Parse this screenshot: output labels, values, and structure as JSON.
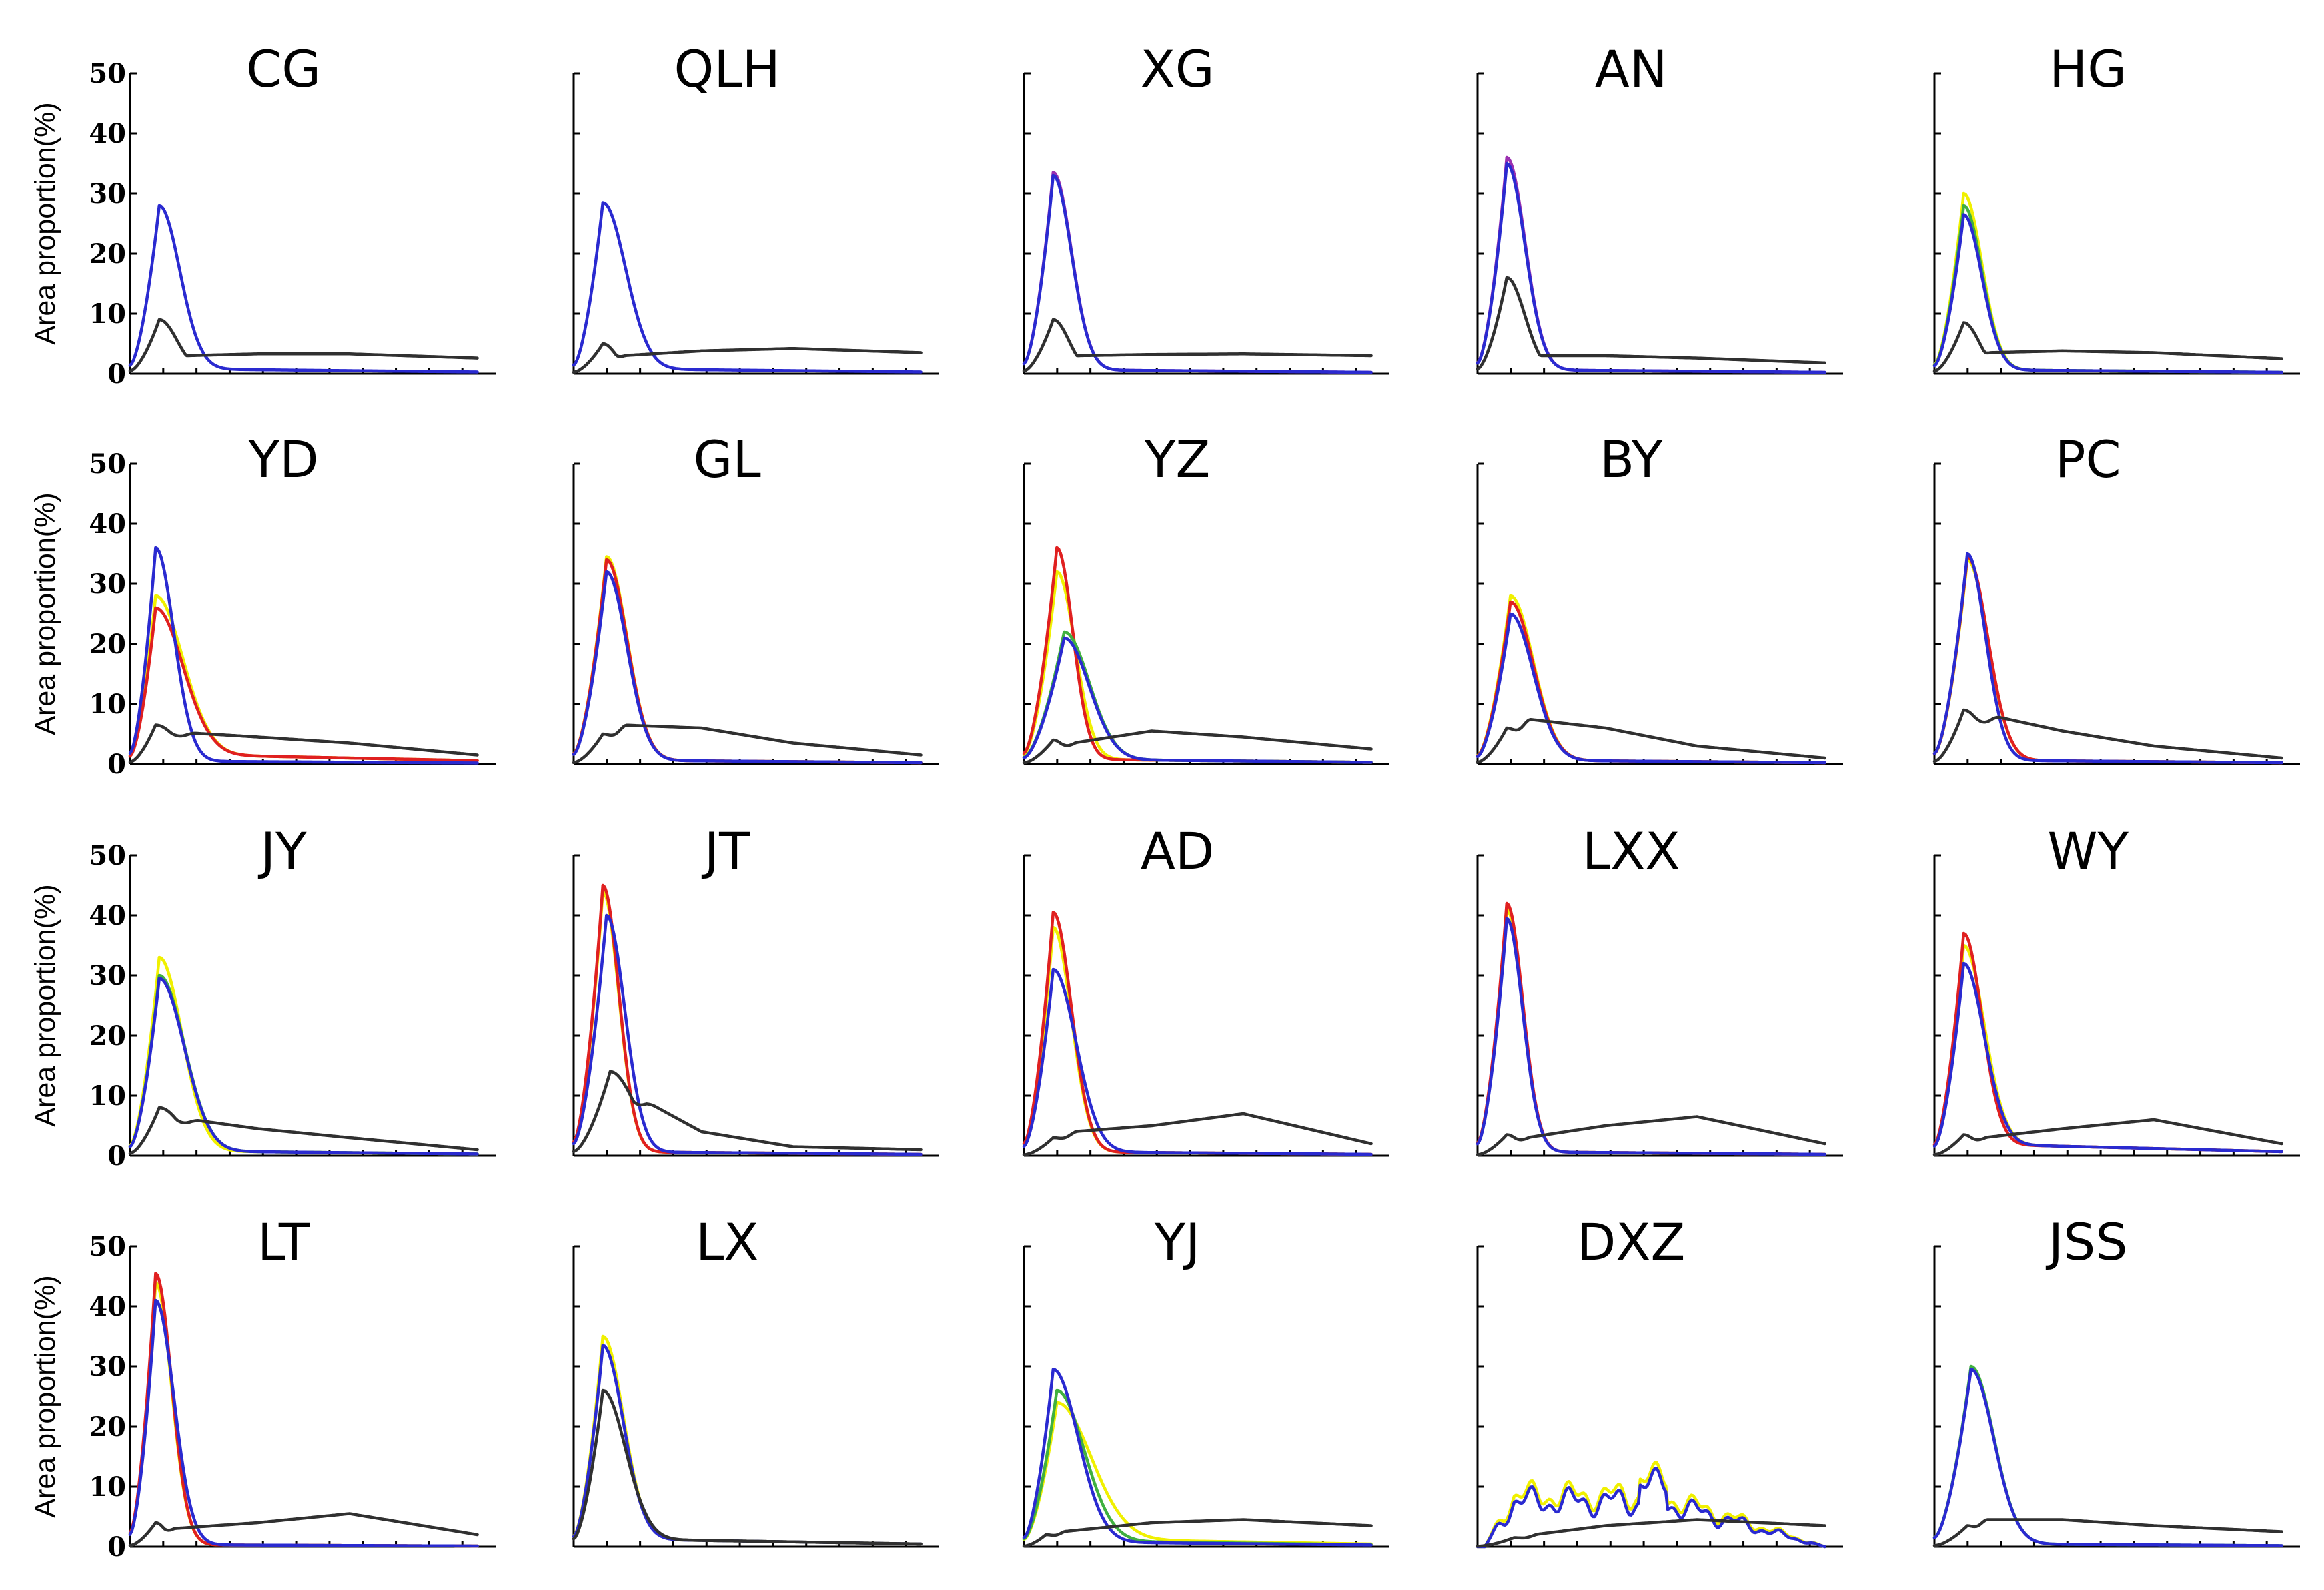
{
  "chart_data": {
    "type": "line",
    "layout": "4x5 small multiples",
    "ylabel": "Area proportion(%)",
    "ylim": [
      0,
      50
    ],
    "yticks": [
      0,
      10,
      20,
      30,
      40,
      50
    ],
    "xlim": [
      0,
      100
    ],
    "legend": "none",
    "grid": false,
    "series_colors": {
      "yellow": "#f0f000",
      "green": "#40b040",
      "red": "#e02020",
      "purple": "#9b30b0",
      "blue": "#2a2ad0",
      "black": "#303030"
    },
    "panels": [
      {
        "title": "CG",
        "series": [
          {
            "color": "blue",
            "peak": 28,
            "peak_x": 8,
            "width": 9,
            "tail": 0.5
          },
          {
            "color": "black",
            "peak": 9,
            "peak_x": 8,
            "width": 8,
            "plateau": [
              3,
              3.3,
              3.3,
              2.6
            ]
          }
        ]
      },
      {
        "title": "QLH",
        "series": [
          {
            "color": "blue",
            "peak": 28.5,
            "peak_x": 8,
            "width": 10,
            "tail": 0.5
          },
          {
            "color": "black",
            "peak": 5,
            "peak_x": 8,
            "width": 6,
            "plateau": [
              3,
              3.8,
              4.2,
              3.5
            ]
          }
        ]
      },
      {
        "title": "XG",
        "series": [
          {
            "color": "purple",
            "peak": 33.5,
            "peak_x": 8,
            "width": 8,
            "tail": 0.4
          },
          {
            "color": "blue",
            "peak": 33,
            "peak_x": 8,
            "width": 8,
            "tail": 0.4
          },
          {
            "color": "black",
            "peak": 9,
            "peak_x": 8,
            "width": 7,
            "plateau": [
              3,
              3.2,
              3.3,
              3
            ]
          }
        ]
      },
      {
        "title": "AN",
        "series": [
          {
            "color": "purple",
            "peak": 36,
            "peak_x": 8,
            "width": 8,
            "tail": 0.4
          },
          {
            "color": "blue",
            "peak": 35,
            "peak_x": 8,
            "width": 8,
            "tail": 0.4
          },
          {
            "color": "black",
            "peak": 16,
            "peak_x": 8,
            "width": 8,
            "plateau": [
              3,
              3,
              2.6,
              1.8
            ]
          }
        ]
      },
      {
        "title": "HG",
        "series": [
          {
            "color": "yellow",
            "peak": 30,
            "peak_x": 8,
            "width": 8,
            "tail": 0.4
          },
          {
            "color": "green",
            "peak": 28,
            "peak_x": 8,
            "width": 8,
            "tail": 0.4
          },
          {
            "color": "blue",
            "peak": 26.5,
            "peak_x": 8,
            "width": 8,
            "tail": 0.4
          },
          {
            "color": "black",
            "peak": 8.5,
            "peak_x": 8,
            "width": 7,
            "plateau": [
              3.5,
              3.8,
              3.5,
              2.5
            ]
          }
        ]
      },
      {
        "title": "YD",
        "series": [
          {
            "color": "yellow",
            "peak": 28,
            "peak_x": 7,
            "width": 12,
            "tail": 1
          },
          {
            "color": "red",
            "peak": 26,
            "peak_x": 7,
            "width": 12,
            "tail": 1
          },
          {
            "color": "blue",
            "peak": 36,
            "peak_x": 7,
            "width": 8,
            "tail": 0.3
          },
          {
            "color": "black",
            "peak": 6.5,
            "peak_x": 7,
            "width": 10,
            "plateau": [
              5.2,
              4.5,
              3.5,
              1.5
            ]
          }
        ]
      },
      {
        "title": "GL",
        "series": [
          {
            "color": "yellow",
            "peak": 34.5,
            "peak_x": 9,
            "width": 9,
            "tail": 0.4
          },
          {
            "color": "red",
            "peak": 34,
            "peak_x": 9,
            "width": 9,
            "tail": 0.4
          },
          {
            "color": "blue",
            "peak": 32,
            "peak_x": 9,
            "width": 9,
            "tail": 0.4
          },
          {
            "color": "black",
            "peak": 5,
            "peak_x": 8,
            "width": 6,
            "plateau": [
              6.5,
              6,
              3.5,
              1.5
            ]
          }
        ]
      },
      {
        "title": "YZ",
        "series": [
          {
            "color": "yellow",
            "peak": 32,
            "peak_x": 9,
            "width": 8,
            "tail": 0.5
          },
          {
            "color": "red",
            "peak": 36,
            "peak_x": 9,
            "width": 7,
            "tail": 0.5
          },
          {
            "color": "green",
            "peak": 22,
            "peak_x": 11,
            "width": 11,
            "tail": 0.5
          },
          {
            "color": "blue",
            "peak": 21,
            "peak_x": 11,
            "width": 11,
            "tail": 0.5
          },
          {
            "color": "black",
            "peak": 4,
            "peak_x": 8,
            "width": 6,
            "plateau": [
              3.5,
              5.5,
              4.5,
              2.5
            ]
          }
        ]
      },
      {
        "title": "BY",
        "series": [
          {
            "color": "yellow",
            "peak": 28,
            "peak_x": 9,
            "width": 10,
            "tail": 0.4
          },
          {
            "color": "red",
            "peak": 27,
            "peak_x": 9,
            "width": 10,
            "tail": 0.4
          },
          {
            "color": "blue",
            "peak": 25,
            "peak_x": 9,
            "width": 10,
            "tail": 0.4
          },
          {
            "color": "black",
            "peak": 6,
            "peak_x": 8,
            "width": 6,
            "plateau": [
              7.5,
              6,
              3,
              1
            ]
          }
        ]
      },
      {
        "title": "PC",
        "series": [
          {
            "color": "yellow",
            "peak": 34,
            "peak_x": 9,
            "width": 9,
            "tail": 0.4
          },
          {
            "color": "red",
            "peak": 34.5,
            "peak_x": 9,
            "width": 9,
            "tail": 0.4
          },
          {
            "color": "blue",
            "peak": 35,
            "peak_x": 9,
            "width": 8,
            "tail": 0.4
          },
          {
            "color": "black",
            "peak": 9,
            "peak_x": 8,
            "width": 9,
            "plateau": [
              8,
              5.5,
              3,
              1
            ]
          }
        ]
      },
      {
        "title": "JY",
        "series": [
          {
            "color": "yellow",
            "peak": 33,
            "peak_x": 8,
            "width": 10,
            "tail": 0.5
          },
          {
            "color": "green",
            "peak": 30,
            "peak_x": 8,
            "width": 11,
            "tail": 0.5
          },
          {
            "color": "blue",
            "peak": 29.5,
            "peak_x": 8,
            "width": 11,
            "tail": 0.5
          },
          {
            "color": "black",
            "peak": 8,
            "peak_x": 8,
            "width": 10,
            "plateau": [
              6,
              4.5,
              3,
              1
            ]
          }
        ]
      },
      {
        "title": "JT",
        "series": [
          {
            "color": "yellow",
            "peak": 44,
            "peak_x": 8,
            "width": 7,
            "tail": 0.4
          },
          {
            "color": "red",
            "peak": 45,
            "peak_x": 8,
            "width": 7,
            "tail": 0.4
          },
          {
            "color": "blue",
            "peak": 40,
            "peak_x": 9,
            "width": 8,
            "tail": 0.4
          },
          {
            "color": "black",
            "peak": 14,
            "peak_x": 10,
            "width": 11,
            "plateau": [
              9,
              4,
              1.5,
              1
            ]
          }
        ]
      },
      {
        "title": "AD",
        "series": [
          {
            "color": "yellow",
            "peak": 38,
            "peak_x": 8,
            "width": 8,
            "tail": 0.4
          },
          {
            "color": "red",
            "peak": 40.5,
            "peak_x": 8,
            "width": 8,
            "tail": 0.4
          },
          {
            "color": "blue",
            "peak": 31,
            "peak_x": 8,
            "width": 10,
            "tail": 0.4
          },
          {
            "color": "black",
            "peak": 3,
            "peak_x": 8,
            "width": 6,
            "plateau": [
              4,
              5,
              7,
              2
            ]
          }
        ]
      },
      {
        "title": "LXX",
        "series": [
          {
            "color": "yellow",
            "peak": 41,
            "peak_x": 8,
            "width": 7,
            "tail": 0.4
          },
          {
            "color": "red",
            "peak": 42,
            "peak_x": 8,
            "width": 7,
            "tail": 0.4
          },
          {
            "color": "blue",
            "peak": 39.5,
            "peak_x": 8,
            "width": 7,
            "tail": 0.4
          },
          {
            "color": "black",
            "peak": 3.5,
            "peak_x": 8,
            "width": 6,
            "plateau": [
              3,
              5,
              6.5,
              2
            ]
          }
        ]
      },
      {
        "title": "WY",
        "series": [
          {
            "color": "yellow",
            "peak": 35,
            "peak_x": 8,
            "width": 9,
            "tail": 1.2
          },
          {
            "color": "red",
            "peak": 37,
            "peak_x": 8,
            "width": 8,
            "tail": 1.2
          },
          {
            "color": "blue",
            "peak": 32,
            "peak_x": 8,
            "width": 9,
            "tail": 1.2
          },
          {
            "color": "black",
            "peak": 3.5,
            "peak_x": 8,
            "width": 6,
            "plateau": [
              3,
              4.5,
              6,
              2
            ]
          }
        ]
      },
      {
        "title": "LT",
        "series": [
          {
            "color": "yellow",
            "peak": 44,
            "peak_x": 7,
            "width": 7,
            "tail": 0.2
          },
          {
            "color": "red",
            "peak": 45.5,
            "peak_x": 7,
            "width": 7,
            "tail": 0.2
          },
          {
            "color": "blue",
            "peak": 41,
            "peak_x": 7,
            "width": 8,
            "tail": 0.2
          },
          {
            "color": "black",
            "peak": 4,
            "peak_x": 7,
            "width": 5,
            "plateau": [
              3,
              4,
              5.5,
              2
            ]
          }
        ]
      },
      {
        "title": "LX",
        "series": [
          {
            "color": "yellow",
            "peak": 35,
            "peak_x": 8,
            "width": 9,
            "tail": 0.8
          },
          {
            "color": "blue",
            "peak": 33.5,
            "peak_x": 8,
            "width": 9,
            "tail": 0.8
          },
          {
            "color": "black",
            "peak": 26,
            "peak_x": 8,
            "width": 10,
            "tail": 0.8
          }
        ]
      },
      {
        "title": "YJ",
        "series": [
          {
            "color": "yellow",
            "peak": 24,
            "peak_x": 9,
            "width": 15,
            "tail": 0.8
          },
          {
            "color": "green",
            "peak": 26,
            "peak_x": 9,
            "width": 12,
            "tail": 0.6
          },
          {
            "color": "blue",
            "peak": 29.5,
            "peak_x": 8,
            "width": 11,
            "tail": 0.5
          },
          {
            "color": "black",
            "peak": 2,
            "peak_x": 6,
            "width": 5,
            "plateau": [
              2.5,
              4,
              4.5,
              3.5
            ]
          }
        ]
      },
      {
        "title": "DXZ",
        "series": [
          {
            "color": "yellow",
            "shape": "wavy",
            "level": 8.5
          },
          {
            "color": "blue",
            "shape": "wavy",
            "level": 7.5
          },
          {
            "color": "black",
            "peak": 1.5,
            "peak_x": 10,
            "width": 6,
            "plateau": [
              2,
              3.5,
              4.5,
              3.5
            ]
          }
        ]
      },
      {
        "title": "JSS",
        "series": [
          {
            "color": "green",
            "peak": 30,
            "peak_x": 10,
            "width": 10,
            "tail": 0.3
          },
          {
            "color": "blue",
            "peak": 29.5,
            "peak_x": 10,
            "width": 10,
            "tail": 0.3
          },
          {
            "color": "black",
            "peak": 3.5,
            "peak_x": 9,
            "width": 5,
            "plateau": [
              4.5,
              4.5,
              3.5,
              2.5
            ]
          }
        ]
      }
    ]
  }
}
